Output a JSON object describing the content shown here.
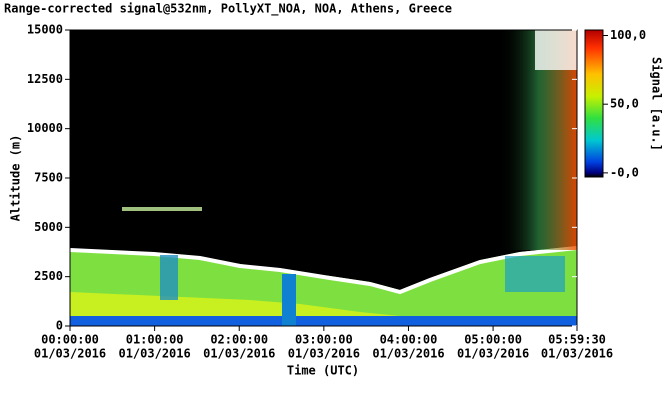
{
  "chart_data": {
    "type": "heatmap",
    "title": "Range-corrected signal@532nm, PollyXT_NOA, NOA, Athens, Greece",
    "xlabel": "Time (UTC)",
    "ylabel": "Altitude (m)",
    "xlim": [
      0,
      359.5
    ],
    "xticks": [
      {
        "value": 0,
        "label": "00:00:00",
        "date": "01/03/2016"
      },
      {
        "value": 60,
        "label": "01:00:00",
        "date": "01/03/2016"
      },
      {
        "value": 120,
        "label": "02:00:00",
        "date": "01/03/2016"
      },
      {
        "value": 180,
        "label": "03:00:00",
        "date": "01/03/2016"
      },
      {
        "value": 240,
        "label": "04:00:00",
        "date": "01/03/2016"
      },
      {
        "value": 300,
        "label": "05:00:00",
        "date": "01/03/2016"
      },
      {
        "value": 359.5,
        "label": "05:59:30",
        "date": "01/03/2016"
      }
    ],
    "ylim": [
      0,
      15000
    ],
    "yticks": [
      0,
      2500,
      5000,
      7500,
      10000,
      12500,
      15000
    ],
    "colorbar": {
      "label": "Signal [a.u.]",
      "clim": [
        -3,
        104
      ],
      "ticks": [
        {
          "value": 100,
          "label": "100,0"
        },
        {
          "value": 50,
          "label": "50,0"
        },
        {
          "value": 0,
          "label": "-0,0"
        }
      ]
    }
  }
}
